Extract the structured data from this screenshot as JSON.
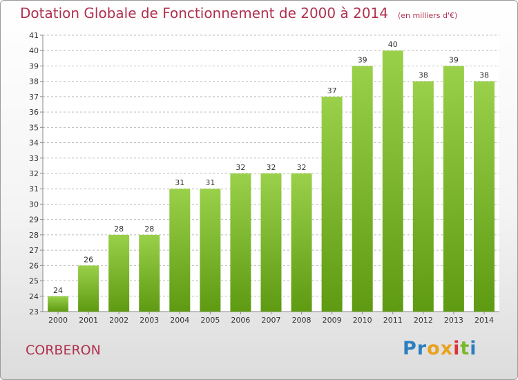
{
  "header": {
    "title": "Dotation Globale de Fonctionnement de 2000 à 2014",
    "unit_note": "(en milliers d'€)"
  },
  "footer": {
    "commune": "CORBERON",
    "logo_text": "Proxiti"
  },
  "colors": {
    "title": "#b03050",
    "bar_top": "#9ad04a",
    "bar_bottom": "#5e9a12",
    "grid": "#bbbbbb",
    "logo_letters": [
      "#2b7ec0",
      "#2b7ec0",
      "#e8a21d",
      "#e8a21d",
      "#d9343a",
      "#79b82a",
      "#2b7ec0"
    ]
  },
  "chart_data": {
    "type": "bar",
    "title": "Dotation Globale de Fonctionnement de 2000 à 2014",
    "subtitle": "(en milliers d'€)",
    "xlabel": "",
    "ylabel": "",
    "categories": [
      "2000",
      "2001",
      "2002",
      "2003",
      "2004",
      "2005",
      "2006",
      "2007",
      "2008",
      "2009",
      "2010",
      "2011",
      "2012",
      "2013",
      "2014"
    ],
    "values": [
      24,
      26,
      28,
      28,
      31,
      31,
      32,
      32,
      32,
      37,
      39,
      40,
      38,
      39,
      38
    ],
    "ylim": [
      23,
      41
    ],
    "yticks": [
      23,
      24,
      25,
      26,
      27,
      28,
      29,
      30,
      31,
      32,
      33,
      34,
      35,
      36,
      37,
      38,
      39,
      40,
      41
    ],
    "grid": true,
    "grid_style": "dashed horizontal",
    "data_labels": true
  }
}
